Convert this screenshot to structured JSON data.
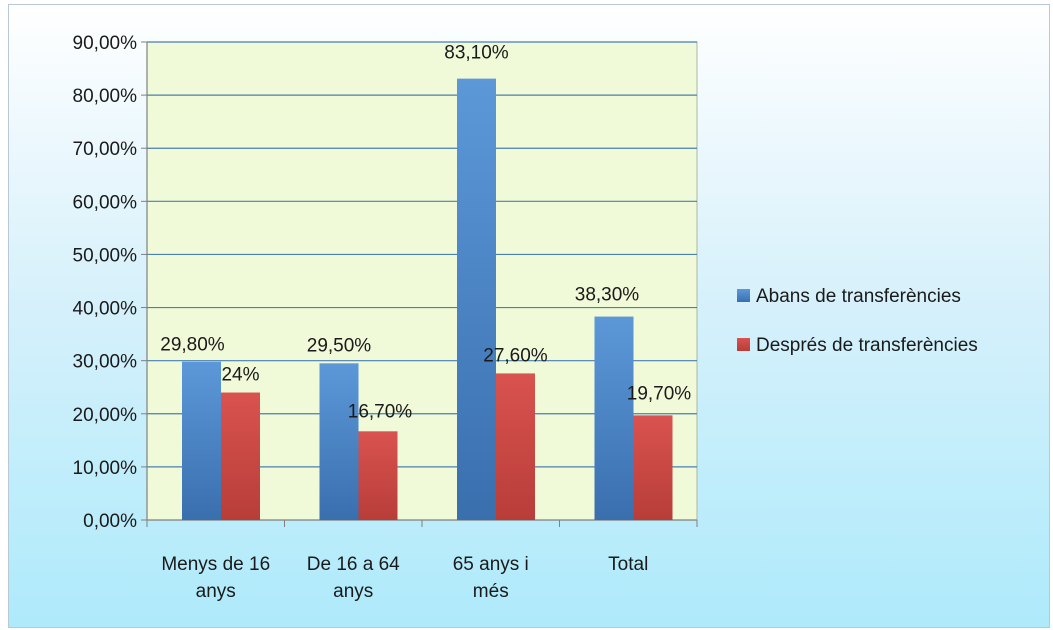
{
  "chart_data": {
    "type": "bar",
    "title": "",
    "xlabel": "",
    "ylabel": "",
    "ylim": [
      0,
      90
    ],
    "y_ticks": [
      "0,00%",
      "10,00%",
      "20,00%",
      "30,00%",
      "40,00%",
      "50,00%",
      "60,00%",
      "70,00%",
      "80,00%",
      "90,00%"
    ],
    "y_tick_values": [
      0,
      10,
      20,
      30,
      40,
      50,
      60,
      70,
      80,
      90
    ],
    "grid": true,
    "legend_position": "right",
    "categories": [
      [
        "Menys de 16",
        "anys"
      ],
      [
        "De 16 a 64",
        "anys"
      ],
      [
        "65 anys i",
        "més"
      ],
      [
        "Total"
      ]
    ],
    "series": [
      {
        "name": "Abans de transferències",
        "color": "#4a86c8",
        "values": [
          29.8,
          29.5,
          83.1,
          38.3
        ],
        "labels": [
          "29,80%",
          "29,50%",
          "83,10%",
          "38,30%"
        ]
      },
      {
        "name": "Després de transferències",
        "color": "#cf4a45",
        "values": [
          24,
          16.7,
          27.6,
          19.7
        ],
        "labels": [
          "24%",
          "16,70%",
          "27,60%",
          "19,70%"
        ]
      }
    ],
    "plot_background": "#f0f9d8",
    "gridline_color": "#4a7fb0"
  }
}
